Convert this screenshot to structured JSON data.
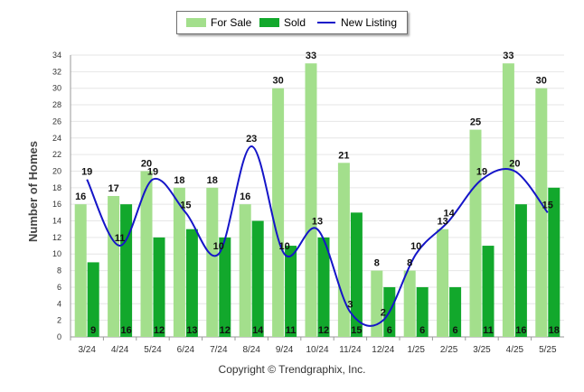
{
  "legend": {
    "for_sale_label": "For Sale",
    "sold_label": "Sold",
    "new_listing_label": "New Listing"
  },
  "copyright": "Copyright © Trendgraphix, Inc.",
  "colors": {
    "for_sale": "#a3df8c",
    "sold": "#12a82c",
    "new_listing": "#1515c8",
    "grid": "#e6e6e6",
    "axis": "#999999"
  },
  "chart_data": {
    "type": "bar",
    "ylabel": "Number of Homes",
    "xlabel": "",
    "ylim": [
      0,
      34
    ],
    "ytick_step": 2,
    "grid": true,
    "legend_position": "top-center",
    "categories": [
      "3/24",
      "4/24",
      "5/24",
      "6/24",
      "7/24",
      "8/24",
      "9/24",
      "10/24",
      "11/24",
      "12/24",
      "1/25",
      "2/25",
      "3/25",
      "4/25",
      "5/25"
    ],
    "series": [
      {
        "name": "For Sale",
        "kind": "bar",
        "values": [
          16,
          17,
          20,
          18,
          18,
          16,
          30,
          33,
          21,
          8,
          8,
          13,
          25,
          33,
          30
        ]
      },
      {
        "name": "Sold",
        "kind": "bar",
        "values": [
          9,
          16,
          12,
          13,
          12,
          14,
          11,
          12,
          15,
          6,
          6,
          6,
          11,
          16,
          18
        ]
      },
      {
        "name": "New Listing",
        "kind": "line",
        "values": [
          19,
          11,
          19,
          15,
          10,
          23,
          10,
          13,
          3,
          2,
          10,
          14,
          19,
          20,
          15
        ]
      }
    ]
  }
}
